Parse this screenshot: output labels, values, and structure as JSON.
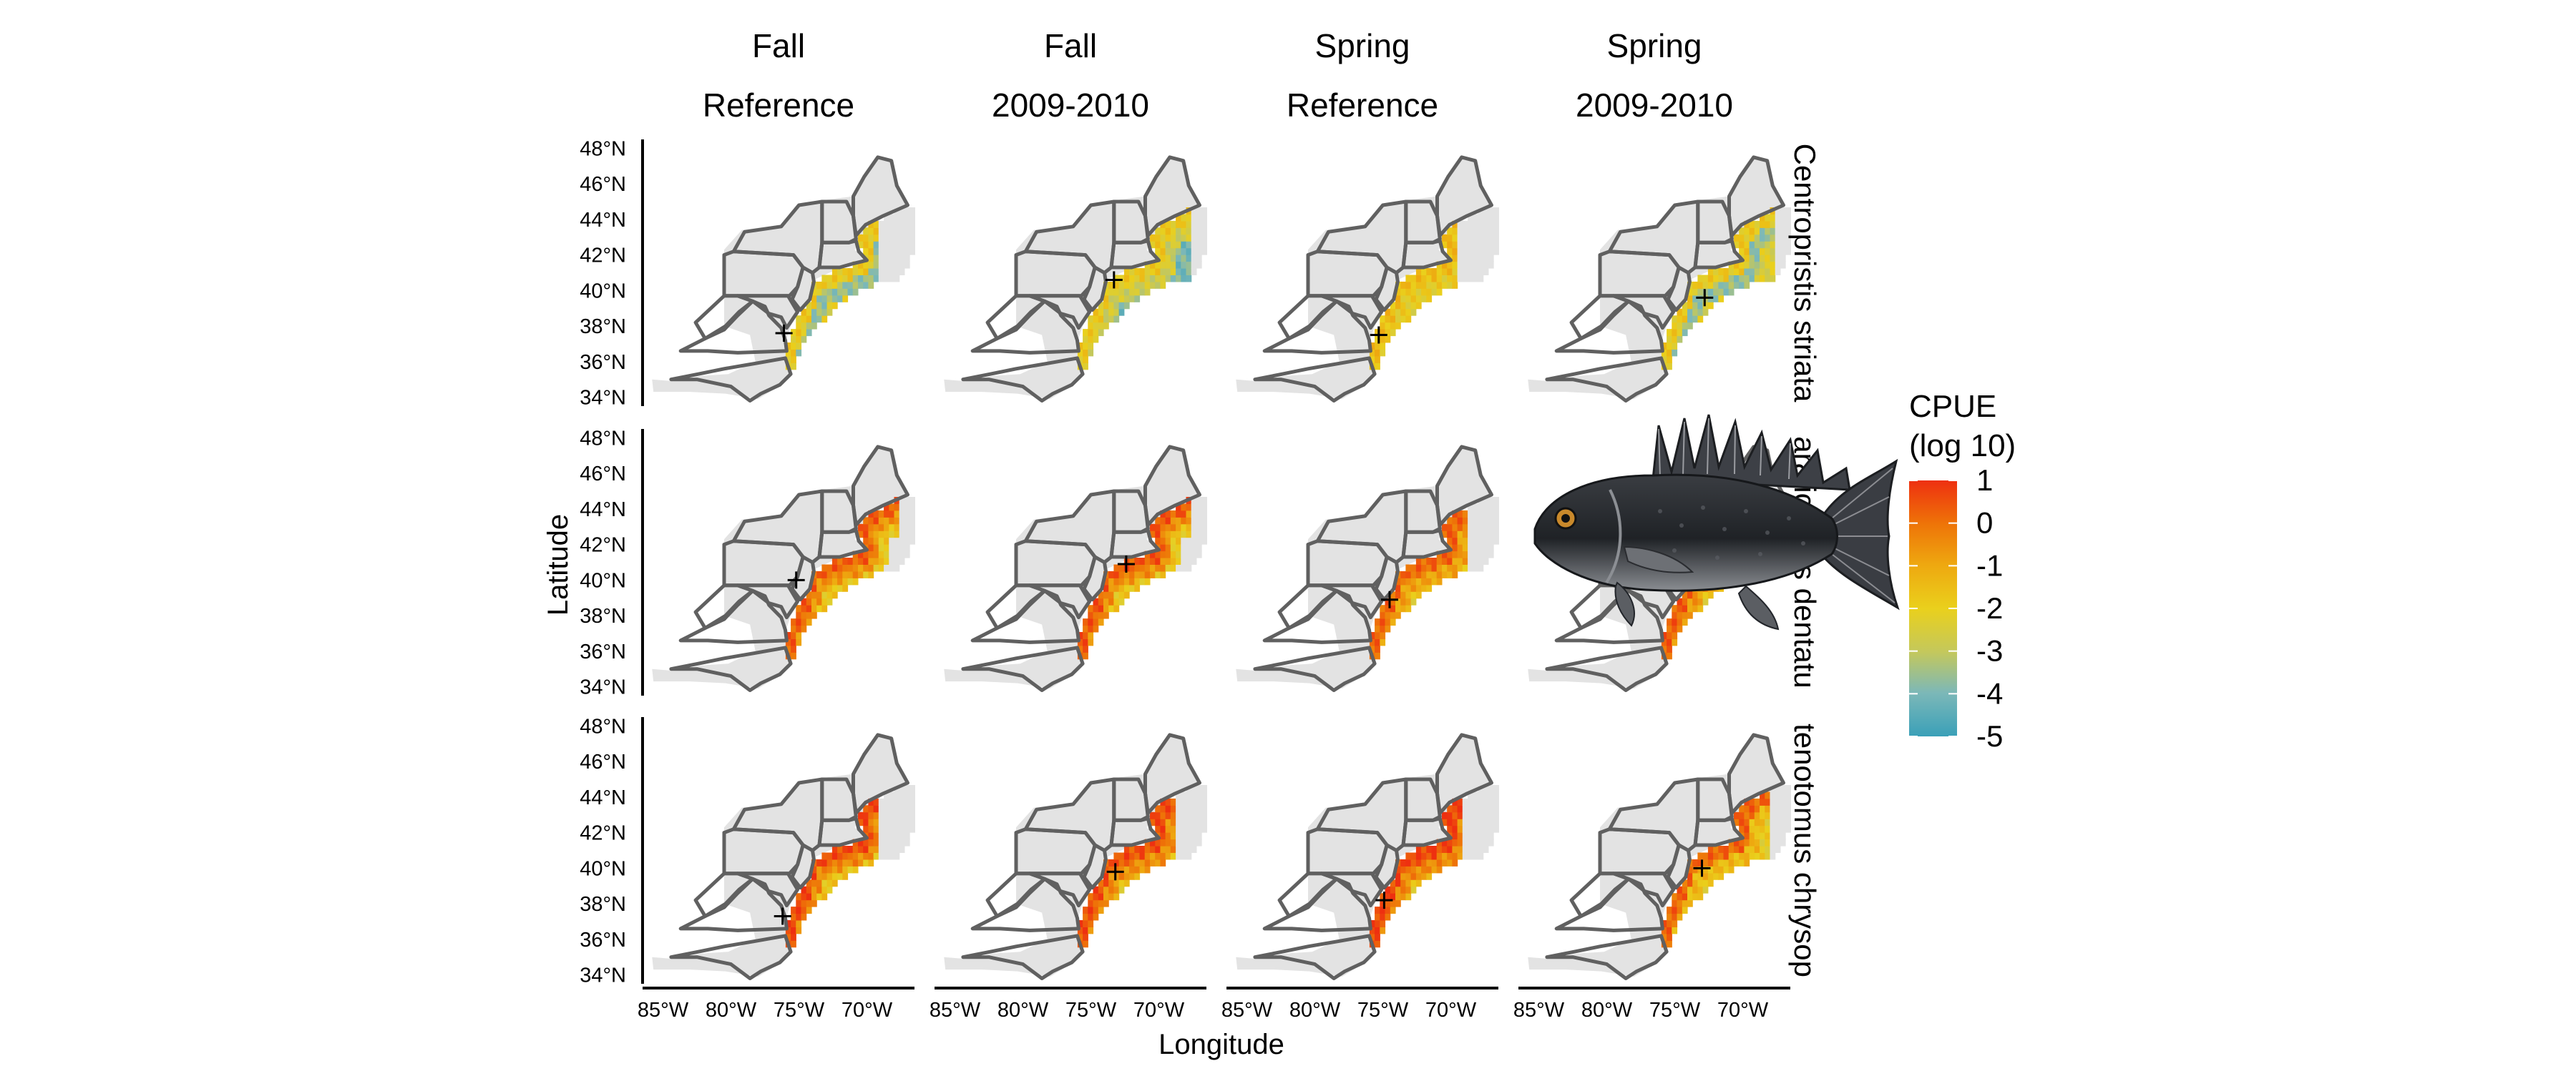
{
  "chart_data": {
    "type": "heatmap",
    "description_source": "faceted map panels",
    "columns": [
      {
        "season": "Fall",
        "period": "Reference"
      },
      {
        "season": "Fall",
        "period": "2009-2010"
      },
      {
        "season": "Spring",
        "period": "Reference"
      },
      {
        "season": "Spring",
        "period": "2009-2010"
      }
    ],
    "rows": [
      {
        "label": "Centropristis striata"
      },
      {
        "label": "aralichthys dentatu"
      },
      {
        "label": "tenotomus chrysop"
      }
    ],
    "xlabel": "Longitude",
    "ylabel": "Latitude",
    "x_ticks": [
      "85°W",
      "80°W",
      "75°W",
      "70°W"
    ],
    "x_tick_values": [
      -85,
      -80,
      -75,
      -70
    ],
    "y_ticks": [
      "48°N",
      "46°N",
      "44°N",
      "42°N",
      "40°N",
      "38°N",
      "36°N",
      "34°N"
    ],
    "y_tick_values": [
      48,
      46,
      44,
      42,
      40,
      38,
      36,
      34
    ],
    "xlim": [
      -86.5,
      -66.5
    ],
    "ylim": [
      33.5,
      48.5
    ],
    "legend": {
      "title_line1": "CPUE",
      "title_line2": "(log 10)",
      "ticks": [
        "1",
        "0",
        "-1",
        "-2",
        "-3",
        "-4",
        "-5"
      ],
      "tick_values": [
        1,
        0,
        -1,
        -2,
        -3,
        -4,
        -5
      ],
      "colors": [
        "#ee3010",
        "#ee7408",
        "#eea810",
        "#ead01c",
        "#c4c85c",
        "#7cb8b8",
        "#3aa0b8"
      ],
      "placement": "right"
    },
    "centroids": [
      [
        {
          "lon": -76.1,
          "lat": 37.6
        },
        {
          "lon": -73.3,
          "lat": 40.6
        },
        {
          "lon": -75.3,
          "lat": 37.5
        },
        {
          "lon": -72.8,
          "lat": 39.6
        }
      ],
      [
        {
          "lon": -75.2,
          "lat": 40.0
        },
        {
          "lon": -72.4,
          "lat": 40.9
        },
        {
          "lon": -74.5,
          "lat": 38.9
        },
        {
          "lon": -71.2,
          "lat": 40.1
        }
      ],
      [
        {
          "lon": -76.2,
          "lat": 37.3
        },
        {
          "lon": -73.2,
          "lat": 39.8
        },
        {
          "lon": -74.9,
          "lat": 38.2
        },
        {
          "lon": -73.0,
          "lat": 40.0
        }
      ]
    ],
    "panels": [
      [
        {
          "lonrange": [
            -77.0,
            -69.0
          ],
          "mode": "full",
          "levels": [
            -1.9,
            -3.6,
            -2.3
          ],
          "vals": [
            1,
            0.5,
            0.2
          ]
        },
        {
          "lonrange": [
            -76.6,
            -67.7
          ],
          "mode": "full",
          "levels": [
            -1.9,
            -2.7,
            -4.0
          ],
          "vals": [
            1,
            0.6,
            0.25
          ]
        },
        {
          "lonrange": [
            -77.0,
            -69.5
          ],
          "mode": "full",
          "levels": [
            -1.5,
            -2.0,
            -2.2
          ],
          "vals": [
            1,
            0.6,
            0.3
          ]
        },
        {
          "lonrange": [
            -76.8,
            -67.7
          ],
          "mode": "full",
          "levels": [
            -1.9,
            -3.6,
            -2.4
          ],
          "vals": [
            1,
            0.6,
            0.3
          ]
        }
      ],
      [
        {
          "lonrange": [
            -77.0,
            -67.5
          ],
          "mode": "coastal",
          "levels": [
            0.3,
            -0.6,
            -1.8
          ],
          "vals": [
            1,
            0.7,
            0.4
          ]
        },
        {
          "lonrange": [
            -76.6,
            -67.5
          ],
          "mode": "coastal",
          "levels": [
            0.4,
            -0.5,
            -1.8
          ],
          "vals": [
            1,
            0.7,
            0.4
          ]
        },
        {
          "lonrange": [
            -77.0,
            -68.8
          ],
          "mode": "full",
          "levels": [
            0.2,
            -0.9,
            -2.0
          ],
          "vals": [
            1,
            0.6,
            0.3
          ]
        },
        {
          "lonrange": [
            -77.0,
            -67.8
          ],
          "mode": "full",
          "levels": [
            0.3,
            -0.7,
            -2.0
          ],
          "vals": [
            1,
            0.6,
            0.3
          ]
        }
      ],
      [
        {
          "lonrange": [
            -76.5,
            -69.0
          ],
          "mode": "coastal",
          "levels": [
            0.6,
            -0.4,
            -1.7
          ],
          "vals": [
            1,
            0.7,
            0.4
          ]
        },
        {
          "lonrange": [
            -76.6,
            -68.8
          ],
          "mode": "full",
          "levels": [
            0.5,
            -0.5,
            -1.9
          ],
          "vals": [
            1,
            0.6,
            0.35
          ]
        },
        {
          "lonrange": [
            -76.3,
            -69.3
          ],
          "mode": "full",
          "levels": [
            0.7,
            -0.4,
            -1.9
          ],
          "vals": [
            1,
            0.6,
            0.3
          ]
        },
        {
          "lonrange": [
            -77.0,
            -68.0
          ],
          "mode": "full",
          "levels": [
            0.2,
            -1.4,
            -2.0
          ],
          "vals": [
            1,
            0.6,
            0.3
          ]
        }
      ]
    ],
    "inset_image": "black-sea-bass-illustration"
  }
}
